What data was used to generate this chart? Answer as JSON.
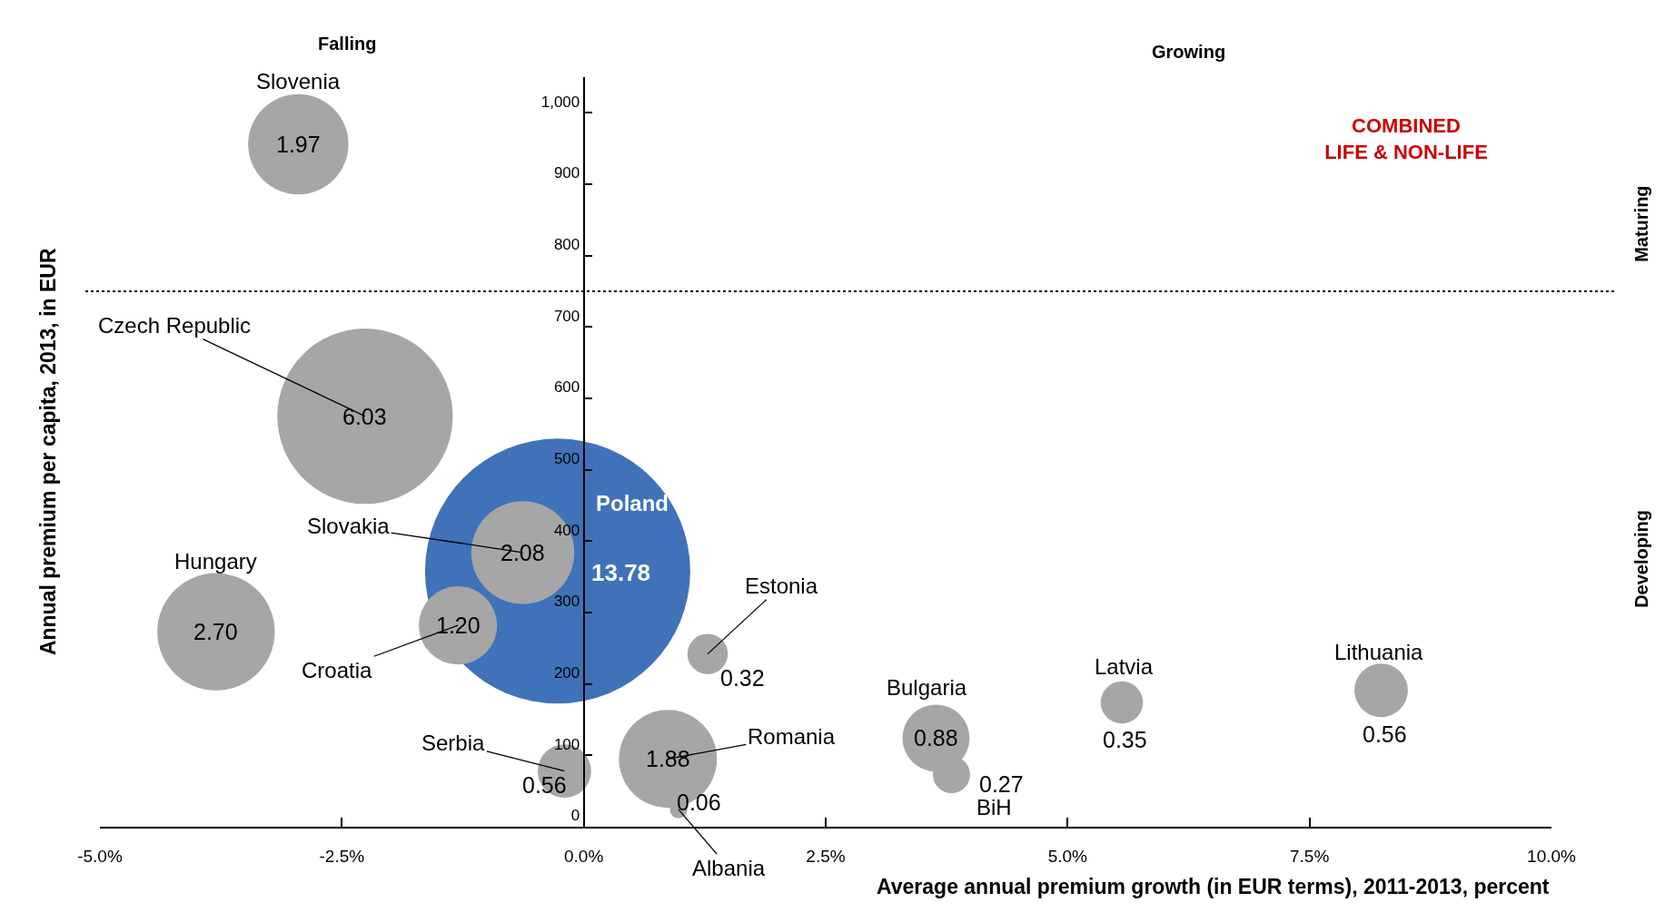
{
  "chart_data": {
    "type": "bubble",
    "xlabel": "Average annual premium growth (in EUR terms), 2011-2013, percent",
    "ylabel": "Annual premium per capita, 2013, in EUR",
    "xlim": [
      -5,
      10
    ],
    "ylim": [
      0,
      1050
    ],
    "xticks": [
      {
        "value": -5,
        "label": "-5.0%"
      },
      {
        "value": -2.5,
        "label": "-2.5%"
      },
      {
        "value": 0,
        "label": "0.0%"
      },
      {
        "value": 2.5,
        "label": "2.5%"
      },
      {
        "value": 5,
        "label": "5.0%"
      },
      {
        "value": 7.5,
        "label": "7.5%"
      },
      {
        "value": 10,
        "label": "10.0%"
      }
    ],
    "yticks": [
      0,
      100,
      200,
      300,
      400,
      500,
      600,
      700,
      800,
      900,
      {
        "value": 1000,
        "label": "1,000"
      }
    ],
    "legend": false,
    "series": [
      {
        "name": "Slovenia",
        "color": "#a6a6a6",
        "x": [
          -2.95
        ],
        "values": [
          956
        ],
        "sizes": [
          1.97
        ],
        "value_labels": [
          "1.97"
        ]
      },
      {
        "name": "Czech Republic",
        "color": "#a6a6a6",
        "x": [
          -2.26
        ],
        "values": [
          575
        ],
        "sizes": [
          6.03
        ],
        "value_labels": [
          "6.03"
        ]
      },
      {
        "name": "Poland",
        "color": "#3f72b8",
        "x": [
          -0.27
        ],
        "values": [
          358
        ],
        "sizes": [
          13.78
        ],
        "value_labels": [
          "13.78"
        ]
      },
      {
        "name": "Slovakia",
        "color": "#a6a6a6",
        "x": [
          -0.63
        ],
        "values": [
          384
        ],
        "sizes": [
          2.08
        ],
        "value_labels": [
          "2.08"
        ]
      },
      {
        "name": "Hungary",
        "color": "#a6a6a6",
        "x": [
          -3.8
        ],
        "values": [
          273
        ],
        "sizes": [
          2.7
        ],
        "value_labels": [
          "2.70"
        ]
      },
      {
        "name": "Croatia",
        "color": "#a6a6a6",
        "x": [
          -1.3
        ],
        "values": [
          282
        ],
        "sizes": [
          1.2
        ],
        "value_labels": [
          "1.20"
        ]
      },
      {
        "name": "Estonia",
        "color": "#a6a6a6",
        "x": [
          1.28
        ],
        "values": [
          242
        ],
        "sizes": [
          0.32
        ],
        "value_labels": [
          "0.32"
        ]
      },
      {
        "name": "Serbia",
        "color": "#a6a6a6",
        "x": [
          -0.2
        ],
        "values": [
          78
        ],
        "sizes": [
          0.56
        ],
        "value_labels": [
          "0.56"
        ]
      },
      {
        "name": "Romania",
        "color": "#a6a6a6",
        "x": [
          0.87
        ],
        "values": [
          95
        ],
        "sizes": [
          1.88
        ],
        "value_labels": [
          "1.88"
        ]
      },
      {
        "name": "Albania",
        "color": "#a6a6a6",
        "x": [
          0.98
        ],
        "values": [
          24
        ],
        "sizes": [
          0.06
        ],
        "value_labels": [
          "0.06"
        ]
      },
      {
        "name": "Bulgaria",
        "color": "#a6a6a6",
        "x": [
          3.64
        ],
        "values": [
          124
        ],
        "sizes": [
          0.88
        ],
        "value_labels": [
          "0.88"
        ]
      },
      {
        "name": "BiH",
        "color": "#a6a6a6",
        "x": [
          3.8
        ],
        "values": [
          73
        ],
        "sizes": [
          0.27
        ],
        "value_labels": [
          "0.27"
        ]
      },
      {
        "name": "Latvia",
        "color": "#a6a6a6",
        "x": [
          5.56
        ],
        "values": [
          174
        ],
        "sizes": [
          0.35
        ],
        "value_labels": [
          "0.35"
        ]
      },
      {
        "name": "Lithuania",
        "color": "#a6a6a6",
        "x": [
          8.24
        ],
        "values": [
          191
        ],
        "sizes": [
          0.56
        ],
        "value_labels": [
          "0.56"
        ]
      }
    ],
    "ref_lines": [
      {
        "axis": "y",
        "value": 750,
        "color": "#000000",
        "line_style": "dotted"
      }
    ],
    "annotations": [
      "Falling",
      "Growing",
      "Maturing",
      "Developing",
      "COMBINED\nLIFE & NON-LIFE"
    ]
  }
}
